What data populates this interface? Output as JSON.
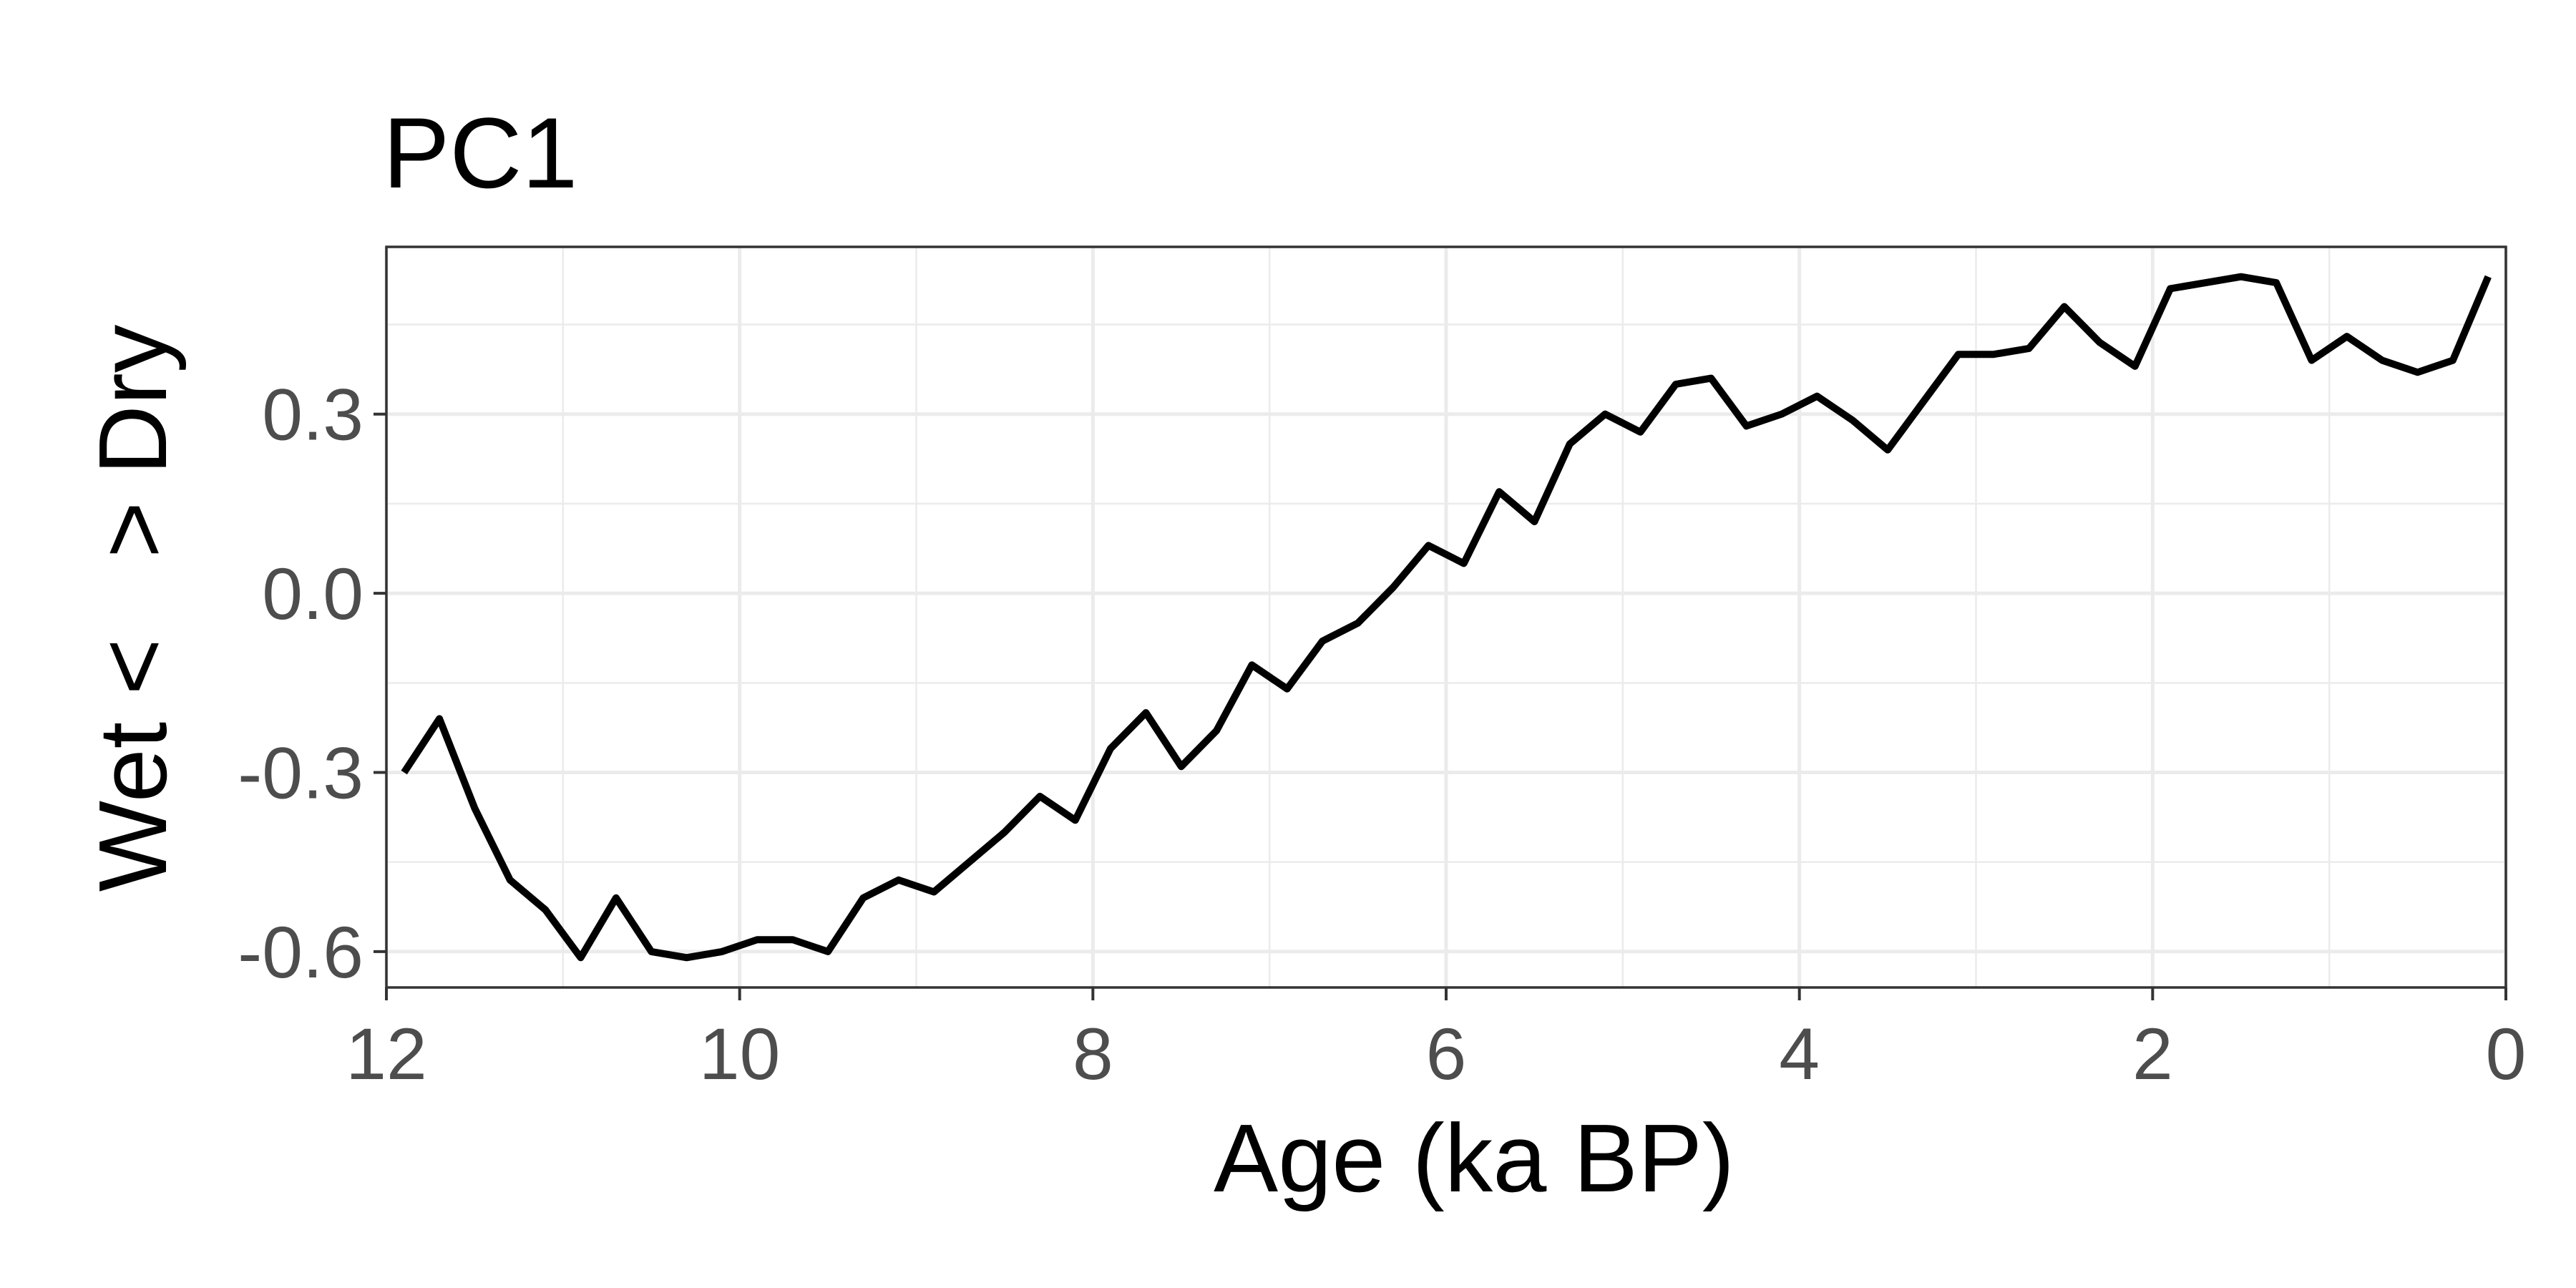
{
  "chart_data": {
    "type": "line",
    "title": "PC1",
    "xlabel": "Age (ka BP)",
    "ylabel": "Wet <   > Dry",
    "xlim": [
      12,
      0
    ],
    "ylim": [
      -0.66,
      0.58
    ],
    "x_reversed": true,
    "x_ticks": [
      12,
      10,
      8,
      6,
      4,
      2,
      0
    ],
    "x_tick_labels": [
      "12",
      "10",
      "8",
      "6",
      "4",
      "2",
      "0"
    ],
    "y_ticks": [
      -0.6,
      -0.3,
      0.0,
      0.3
    ],
    "y_tick_labels": [
      "-0.6",
      "-0.3",
      "0.0",
      "0.3"
    ],
    "grid": true,
    "series": [
      {
        "color": "#000000",
        "x": [
          11.9,
          11.7,
          11.5,
          11.3,
          11.1,
          10.9,
          10.7,
          10.5,
          10.3,
          10.1,
          9.9,
          9.7,
          9.5,
          9.3,
          9.1,
          8.9,
          8.7,
          8.5,
          8.3,
          8.1,
          7.9,
          7.7,
          7.5,
          7.3,
          7.1,
          6.9,
          6.7,
          6.5,
          6.3,
          6.1,
          5.9,
          5.7,
          5.5,
          5.3,
          5.1,
          4.9,
          4.7,
          4.5,
          4.3,
          4.1,
          3.9,
          3.7,
          3.5,
          3.3,
          3.1,
          2.9,
          2.7,
          2.5,
          2.3,
          2.1,
          1.9,
          1.7,
          1.5,
          1.3,
          1.1,
          0.9,
          0.7,
          0.5,
          0.3,
          0.1
        ],
        "y": [
          -0.3,
          -0.21,
          -0.36,
          -0.48,
          -0.53,
          -0.61,
          -0.51,
          -0.6,
          -0.61,
          -0.6,
          -0.58,
          -0.58,
          -0.6,
          -0.51,
          -0.48,
          -0.5,
          -0.45,
          -0.4,
          -0.34,
          -0.38,
          -0.26,
          -0.2,
          -0.29,
          -0.23,
          -0.12,
          -0.16,
          -0.08,
          -0.05,
          0.01,
          0.08,
          0.05,
          0.17,
          0.12,
          0.25,
          0.3,
          0.27,
          0.35,
          0.36,
          0.28,
          0.3,
          0.33,
          0.29,
          0.24,
          0.32,
          0.4,
          0.4,
          0.41,
          0.48,
          0.42,
          0.38,
          0.51,
          0.52,
          0.53,
          0.52,
          0.39,
          0.43,
          0.39,
          0.37,
          0.39,
          0.53
        ]
      }
    ]
  }
}
